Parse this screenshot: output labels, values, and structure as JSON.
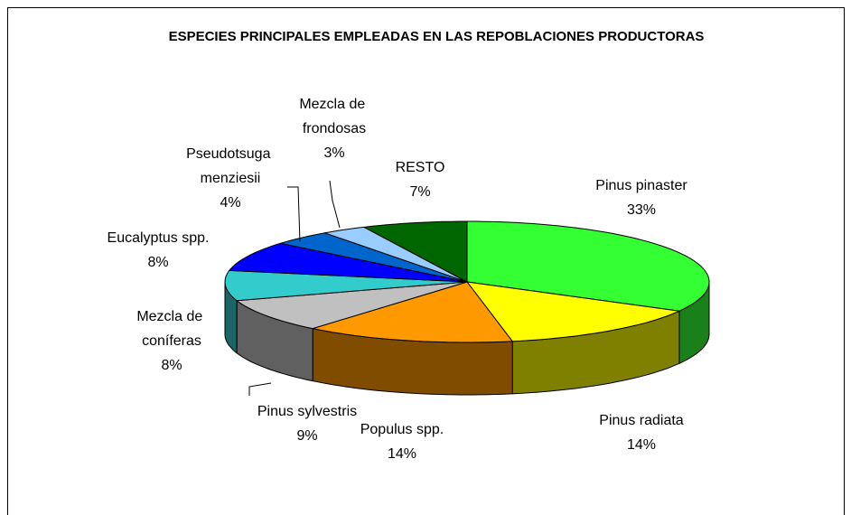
{
  "chart_data": {
    "type": "pie3d",
    "title": "ESPECIES PRINCIPALES EMPLEADAS EN LAS REPOBLACIONES PRODUCTORAS",
    "categories": [
      "Pinus pinaster",
      "Pinus radiata",
      "Populus spp.",
      "Pinus sylvestris",
      "Mezcla de coníferas",
      "Eucalyptus spp.",
      "Pseudotsuga menziesii",
      "Mezcla de frondosas",
      "RESTO"
    ],
    "values": [
      33,
      14,
      14,
      9,
      8,
      8,
      4,
      3,
      7
    ],
    "value_labels": [
      "33%",
      "14%",
      "14%",
      "9%",
      "8%",
      "8%",
      "4%",
      "3%",
      "7%"
    ],
    "colors": [
      "#33ff33",
      "#ffff00",
      "#ff9900",
      "#c0c0c0",
      "#33cccc",
      "#0000ff",
      "#0066cc",
      "#99ccff",
      "#006600"
    ]
  }
}
